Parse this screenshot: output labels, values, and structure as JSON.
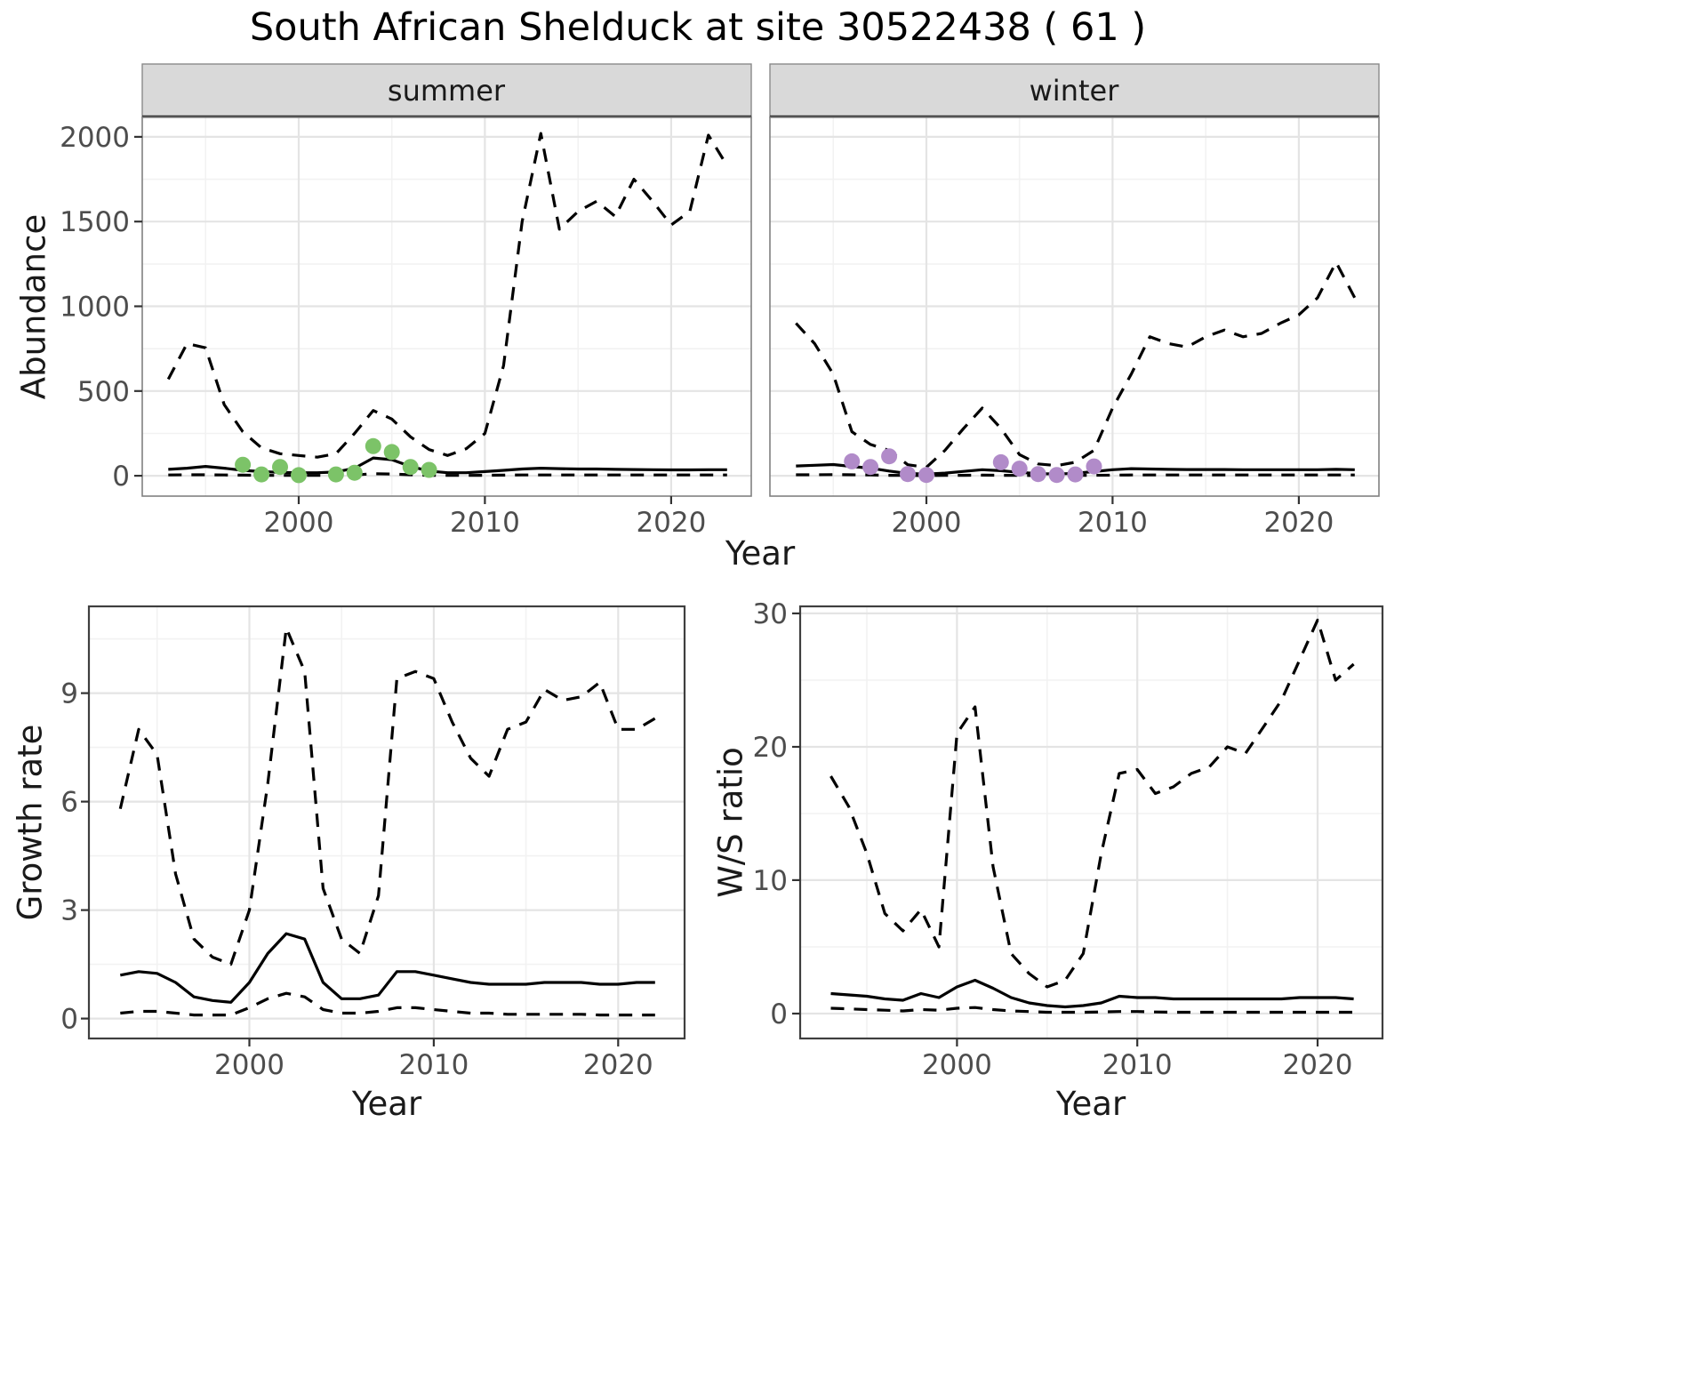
{
  "title": "South African Shelduck at site 30522438 ( 61 )",
  "colors": {
    "observed_summer": "#7CC368",
    "observed_winter": "#B18BC9",
    "estimate_line": "#000000",
    "ci_line": "#000000",
    "strip_background": "#D9D9D9",
    "panel_background": "#FFFFFF"
  },
  "chart_data": [
    {
      "id": "abundance",
      "type": "line",
      "title": "South African Shelduck at site 30522438 ( 61 )",
      "xlabel": "Year",
      "ylabel": "Abundance",
      "legend": "none",
      "grid": "on",
      "x": [
        1993,
        1994,
        1995,
        1996,
        1997,
        1998,
        1999,
        2000,
        2001,
        2002,
        2003,
        2004,
        2005,
        2006,
        2007,
        2008,
        2009,
        2010,
        2011,
        2012,
        2013,
        2014,
        2015,
        2016,
        2017,
        2018,
        2019,
        2020,
        2021,
        2022,
        2023
      ],
      "xlim": [
        1991.6,
        2024.3
      ],
      "ylim": [
        -120,
        2115
      ],
      "xticks": [
        2000,
        2010,
        2020
      ],
      "xtick_labels": [
        "2000",
        "2010",
        "2020"
      ],
      "yticks": [
        0,
        500,
        1000,
        1500,
        2000
      ],
      "ytick_labels": [
        "0",
        "500",
        "1000",
        "1500",
        "2000"
      ],
      "facets": [
        {
          "label": "summer",
          "series": [
            {
              "name": "upper-ci",
              "style": "dashed",
              "values": [
                570,
                780,
                755,
                420,
                260,
                165,
                130,
                120,
                110,
                130,
                250,
                385,
                335,
                230,
                155,
                120,
                160,
                250,
                650,
                1500,
                2020,
                1455,
                1560,
                1620,
                1530,
                1750,
                1620,
                1480,
                1560,
                2010,
                1830
              ]
            },
            {
              "name": "estimate",
              "style": "solid",
              "values": [
                38,
                45,
                55,
                45,
                32,
                25,
                20,
                18,
                18,
                22,
                45,
                105,
                95,
                55,
                28,
                18,
                18,
                25,
                32,
                40,
                45,
                42,
                40,
                40,
                38,
                37,
                36,
                35,
                35,
                36,
                36
              ]
            },
            {
              "name": "lower-ci",
              "style": "dashed",
              "values": [
                5,
                6,
                6,
                5,
                4,
                3,
                2,
                2,
                2,
                3,
                5,
                12,
                10,
                6,
                3,
                2,
                2,
                3,
                4,
                5,
                5,
                5,
                5,
                5,
                5,
                5,
                5,
                5,
                5,
                5,
                5
              ]
            }
          ],
          "observed": {
            "color": "#7CC368",
            "x": [
              1997,
              1998,
              1999,
              2000,
              2002,
              2003,
              2004,
              2005,
              2006,
              2007
            ],
            "y": [
              65,
              8,
              52,
              4,
              8,
              18,
              175,
              140,
              52,
              35
            ]
          }
        },
        {
          "label": "winter",
          "series": [
            {
              "name": "upper-ci",
              "style": "dashed",
              "values": [
                900,
                780,
                600,
                260,
                185,
                150,
                65,
                50,
                150,
                280,
                400,
                280,
                125,
                70,
                60,
                80,
                150,
                400,
                600,
                820,
                780,
                760,
                820,
                860,
                820,
                840,
                900,
                950,
                1050,
                1260,
                1050
              ]
            },
            {
              "name": "estimate",
              "style": "solid",
              "values": [
                58,
                62,
                66,
                55,
                45,
                28,
                14,
                10,
                16,
                26,
                36,
                30,
                20,
                13,
                10,
                15,
                25,
                36,
                42,
                40,
                38,
                37,
                37,
                37,
                36,
                36,
                36,
                36,
                36,
                38,
                36
              ]
            },
            {
              "name": "lower-ci",
              "style": "dashed",
              "values": [
                6,
                6,
                7,
                6,
                5,
                3,
                2,
                1,
                2,
                3,
                4,
                3,
                2,
                1,
                1,
                2,
                3,
                4,
                5,
                5,
                5,
                5,
                5,
                5,
                5,
                5,
                5,
                5,
                5,
                5,
                5
              ]
            }
          ],
          "observed": {
            "color": "#B18BC9",
            "x": [
              1996,
              1997,
              1998,
              1999,
              2000,
              2004,
              2005,
              2006,
              2007,
              2008,
              2009
            ],
            "y": [
              85,
              52,
              115,
              10,
              5,
              80,
              42,
              10,
              5,
              8,
              55
            ]
          }
        }
      ]
    },
    {
      "id": "growth-rate",
      "type": "line",
      "xlabel": "Year",
      "ylabel": "Growth rate",
      "legend": "none",
      "grid": "on",
      "x": [
        1993,
        1994,
        1995,
        1996,
        1997,
        1998,
        1999,
        2000,
        2001,
        2002,
        2003,
        2004,
        2005,
        2006,
        2007,
        2008,
        2009,
        2010,
        2011,
        2012,
        2013,
        2014,
        2015,
        2016,
        2017,
        2018,
        2019,
        2020,
        2021,
        2022
      ],
      "xlim": [
        1991.3,
        2023.6
      ],
      "ylim": [
        -0.55,
        11.4
      ],
      "xticks": [
        2000,
        2010,
        2020
      ],
      "xtick_labels": [
        "2000",
        "2010",
        "2020"
      ],
      "yticks": [
        0,
        3,
        6,
        9
      ],
      "ytick_labels": [
        "0",
        "3",
        "6",
        "9"
      ],
      "series": [
        {
          "name": "upper-ci",
          "style": "dashed",
          "values": [
            5.8,
            8.0,
            7.3,
            4.0,
            2.2,
            1.7,
            1.5,
            3.0,
            6.5,
            10.8,
            9.6,
            3.6,
            2.2,
            1.8,
            3.4,
            9.4,
            9.6,
            9.4,
            8.2,
            7.2,
            6.7,
            8.0,
            8.2,
            9.1,
            8.8,
            8.9,
            9.3,
            8.0,
            8.0,
            8.3
          ]
        },
        {
          "name": "estimate",
          "style": "solid",
          "values": [
            1.2,
            1.3,
            1.25,
            1.0,
            0.6,
            0.5,
            0.45,
            1.0,
            1.8,
            2.35,
            2.2,
            1.0,
            0.55,
            0.55,
            0.65,
            1.3,
            1.3,
            1.2,
            1.1,
            1.0,
            0.95,
            0.95,
            0.95,
            1.0,
            1.0,
            1.0,
            0.95,
            0.95,
            1.0,
            1.0
          ]
        },
        {
          "name": "lower-ci",
          "style": "dashed",
          "values": [
            0.15,
            0.2,
            0.2,
            0.15,
            0.1,
            0.1,
            0.1,
            0.3,
            0.55,
            0.7,
            0.6,
            0.25,
            0.15,
            0.15,
            0.2,
            0.3,
            0.3,
            0.25,
            0.2,
            0.15,
            0.15,
            0.12,
            0.12,
            0.12,
            0.12,
            0.12,
            0.1,
            0.1,
            0.1,
            0.1
          ]
        }
      ]
    },
    {
      "id": "ws-ratio",
      "type": "line",
      "xlabel": "Year",
      "ylabel": "W/S ratio",
      "legend": "none",
      "grid": "on",
      "x": [
        1993,
        1994,
        1995,
        1996,
        1997,
        1998,
        1999,
        2000,
        2001,
        2002,
        2003,
        2004,
        2005,
        2006,
        2007,
        2008,
        2009,
        2010,
        2011,
        2012,
        2013,
        2014,
        2015,
        2016,
        2017,
        2018,
        2019,
        2020,
        2021,
        2022
      ],
      "xlim": [
        1991.3,
        2023.6
      ],
      "ylim": [
        -1.87,
        30.53
      ],
      "xticks": [
        2000,
        2010,
        2020
      ],
      "xtick_labels": [
        "2000",
        "2010",
        "2020"
      ],
      "yticks": [
        0,
        10,
        20,
        30
      ],
      "ytick_labels": [
        "0",
        "10",
        "20",
        "30"
      ],
      "series": [
        {
          "name": "upper-ci",
          "style": "dashed",
          "values": [
            17.8,
            15.5,
            12.0,
            7.5,
            6.2,
            7.8,
            5.0,
            21.0,
            23.0,
            11.0,
            4.5,
            3.0,
            2.0,
            2.5,
            4.5,
            12.0,
            18.0,
            18.3,
            16.5,
            17.0,
            18.0,
            18.5,
            20.0,
            19.5,
            21.5,
            23.5,
            26.5,
            29.5,
            25.0,
            26.2
          ]
        },
        {
          "name": "estimate",
          "style": "solid",
          "values": [
            1.5,
            1.4,
            1.3,
            1.1,
            1.0,
            1.5,
            1.2,
            2.0,
            2.5,
            1.9,
            1.2,
            0.8,
            0.6,
            0.5,
            0.6,
            0.8,
            1.3,
            1.2,
            1.2,
            1.1,
            1.1,
            1.1,
            1.1,
            1.1,
            1.1,
            1.1,
            1.2,
            1.2,
            1.2,
            1.1
          ]
        },
        {
          "name": "lower-ci",
          "style": "dashed",
          "values": [
            0.4,
            0.35,
            0.3,
            0.25,
            0.2,
            0.3,
            0.25,
            0.4,
            0.45,
            0.3,
            0.2,
            0.15,
            0.1,
            0.1,
            0.1,
            0.12,
            0.15,
            0.15,
            0.12,
            0.1,
            0.1,
            0.1,
            0.1,
            0.1,
            0.1,
            0.1,
            0.1,
            0.1,
            0.1,
            0.1
          ]
        }
      ]
    }
  ]
}
